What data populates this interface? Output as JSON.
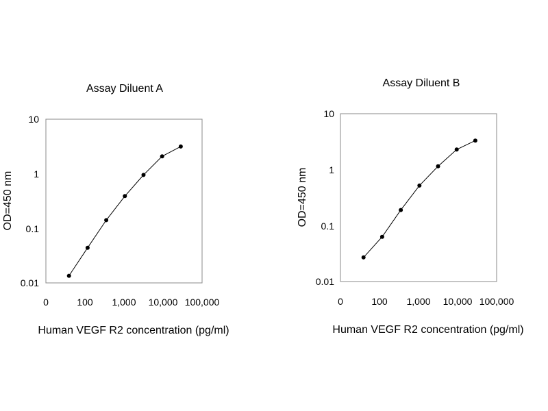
{
  "chart_data": [
    {
      "type": "line",
      "title": "Assay Diluent A",
      "xlabel": "Human VEGF R2 concentration (pg/ml)",
      "ylabel": "OD=450 nm",
      "x_scale": "log",
      "y_scale": "log",
      "x_ticks": [
        "0",
        "100",
        "1,000",
        "10,000",
        "100,000"
      ],
      "y_ticks": [
        "10",
        "1",
        "0.1",
        "0.01"
      ],
      "xlim": [
        10,
        100000
      ],
      "ylim": [
        0.01,
        10
      ],
      "grid": false,
      "series": [
        {
          "x": [
            39,
            117,
            351,
            1053,
            3158,
            9475,
            28425
          ],
          "values": [
            0.0135,
            0.044,
            0.141,
            0.389,
            0.95,
            2.09,
            3.16
          ]
        }
      ]
    },
    {
      "type": "line",
      "title": "Assay Diluent B",
      "xlabel": "Human VEGF R2 concentration (pg/ml)",
      "ylabel": "OD=450 nm",
      "x_scale": "log",
      "y_scale": "log",
      "x_ticks": [
        "0",
        "100",
        "1,000",
        "10,000",
        "100,000"
      ],
      "y_ticks": [
        "10",
        "1",
        "0.1",
        "0.01"
      ],
      "xlim": [
        10,
        100000
      ],
      "ylim": [
        0.01,
        10
      ],
      "grid": false,
      "series": [
        {
          "x": [
            39,
            117,
            351,
            1053,
            3158,
            9475,
            28425
          ],
          "values": [
            0.027,
            0.063,
            0.19,
            0.52,
            1.15,
            2.29,
            3.31
          ]
        }
      ]
    }
  ]
}
